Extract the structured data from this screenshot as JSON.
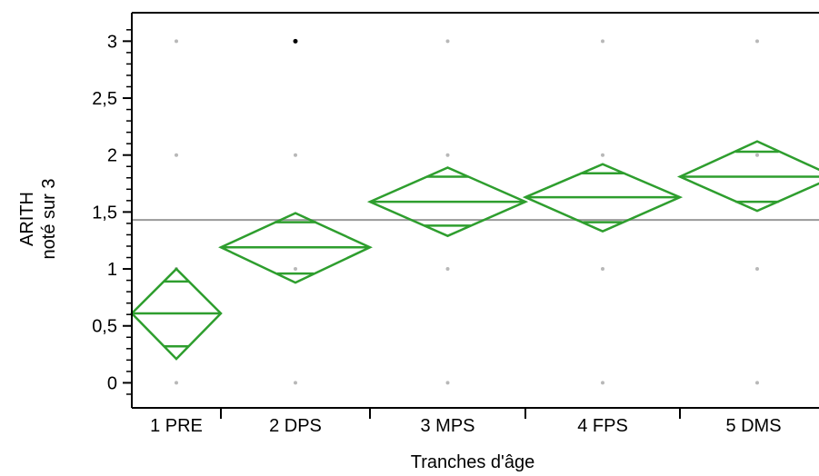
{
  "chart_data": {
    "type": "means-diamonds",
    "xlabel": "Tranches d'âge",
    "ylabel_line1": "ARITH",
    "ylabel_line2": "noté sur 3",
    "ylim": [
      -0.22,
      3.25
    ],
    "ytick_labels": [
      "0",
      "0,5",
      "1",
      "1,5",
      "2",
      "2,5",
      "3"
    ],
    "ytick_values": [
      0,
      0.5,
      1,
      1.5,
      2,
      2.5,
      3
    ],
    "categories": [
      "1 PRE",
      "2 DPS",
      "3 MPS",
      "4 FPS",
      "5 DMS"
    ],
    "overall_mean": 1.43,
    "groups": [
      {
        "category": "1 PRE",
        "mean": 0.61,
        "lower": 0.21,
        "upper": 1.0,
        "overlap_low": 0.32,
        "overlap_high": 0.89
      },
      {
        "category": "2 DPS",
        "mean": 1.19,
        "lower": 0.88,
        "upper": 1.49,
        "overlap_low": 0.96,
        "overlap_high": 1.41
      },
      {
        "category": "3 MPS",
        "mean": 1.59,
        "lower": 1.29,
        "upper": 1.89,
        "overlap_low": 1.38,
        "overlap_high": 1.81
      },
      {
        "category": "4 FPS",
        "mean": 1.63,
        "lower": 1.33,
        "upper": 1.92,
        "overlap_low": 1.41,
        "overlap_high": 1.84
      },
      {
        "category": "5 DMS",
        "mean": 1.81,
        "lower": 1.51,
        "upper": 2.12,
        "overlap_low": 1.59,
        "overlap_high": 2.03
      }
    ],
    "points": [
      {
        "category": "2 DPS",
        "value": 3
      }
    ],
    "grid": "dots",
    "colors": {
      "diamond": "#2e9e2e",
      "mean_line": "#999999",
      "grid_dot": "#b8b8b8",
      "point": "#000000"
    }
  }
}
